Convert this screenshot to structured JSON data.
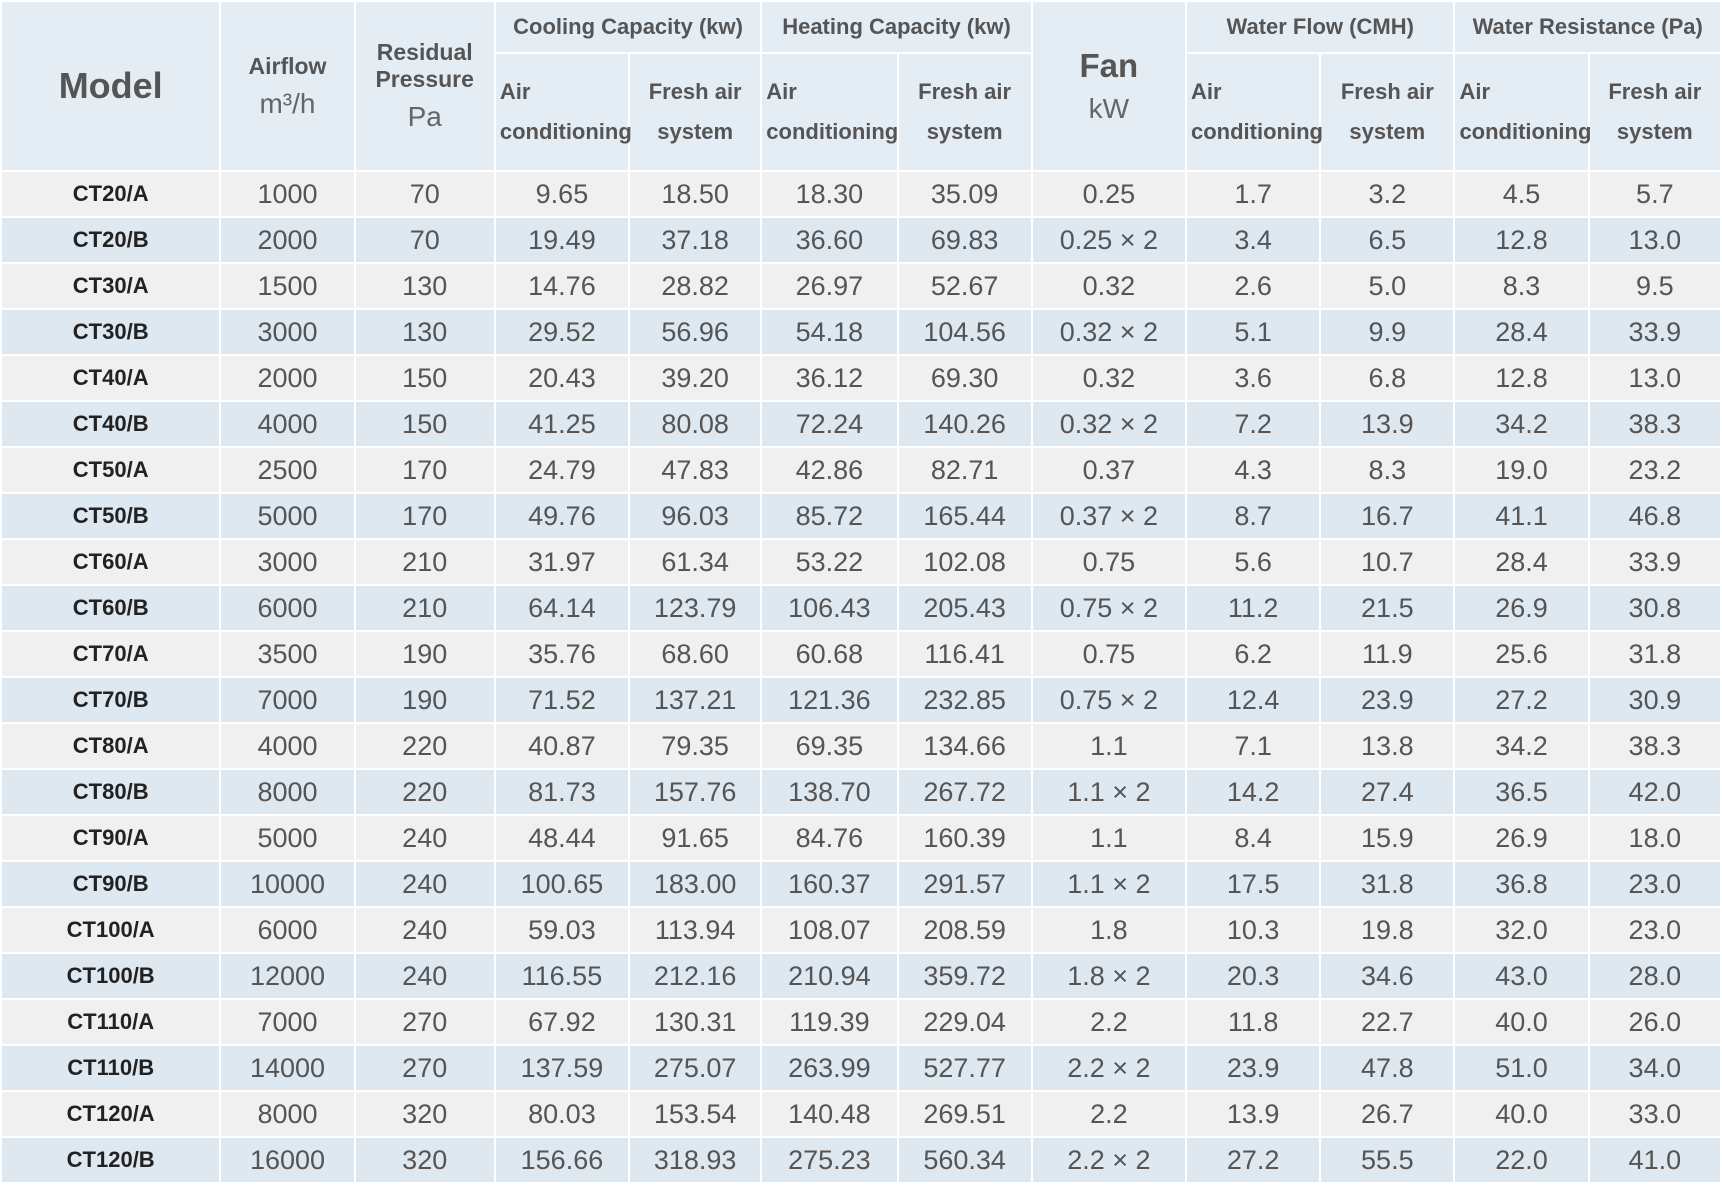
{
  "header": {
    "model": "Model",
    "airflow": "Airflow",
    "airflow_unit": "m³/h",
    "residual": "Residual Pressure",
    "residual_unit": "Pa",
    "fan": "Fan",
    "fan_unit": "kW",
    "groups": [
      {
        "title": "Cooling Capacity (kw)",
        "sub": [
          "Air conditioning",
          "Fresh air system"
        ]
      },
      {
        "title": "Heating Capacity (kw)",
        "sub": [
          "Air conditioning",
          "Fresh air system"
        ]
      },
      {
        "title": "Water Flow (CMH)",
        "sub": [
          "Air conditioning",
          "Fresh air system"
        ]
      },
      {
        "title": "Water Resistance (Pa)",
        "sub": [
          "Air conditioning",
          "Fresh air system"
        ]
      }
    ]
  },
  "rows": [
    [
      "CT20/A",
      "1000",
      "70",
      "9.65",
      "18.50",
      "18.30",
      "35.09",
      "0.25",
      "1.7",
      "3.2",
      "4.5",
      "5.7"
    ],
    [
      "CT20/B",
      "2000",
      "70",
      "19.49",
      "37.18",
      "36.60",
      "69.83",
      "0.25 × 2",
      "3.4",
      "6.5",
      "12.8",
      "13.0"
    ],
    [
      "CT30/A",
      "1500",
      "130",
      "14.76",
      "28.82",
      "26.97",
      "52.67",
      "0.32",
      "2.6",
      "5.0",
      "8.3",
      "9.5"
    ],
    [
      "CT30/B",
      "3000",
      "130",
      "29.52",
      "56.96",
      "54.18",
      "104.56",
      "0.32 × 2",
      "5.1",
      "9.9",
      "28.4",
      "33.9"
    ],
    [
      "CT40/A",
      "2000",
      "150",
      "20.43",
      "39.20",
      "36.12",
      "69.30",
      "0.32",
      "3.6",
      "6.8",
      "12.8",
      "13.0"
    ],
    [
      "CT40/B",
      "4000",
      "150",
      "41.25",
      "80.08",
      "72.24",
      "140.26",
      "0.32 × 2",
      "7.2",
      "13.9",
      "34.2",
      "38.3"
    ],
    [
      "CT50/A",
      "2500",
      "170",
      "24.79",
      "47.83",
      "42.86",
      "82.71",
      "0.37",
      "4.3",
      "8.3",
      "19.0",
      "23.2"
    ],
    [
      "CT50/B",
      "5000",
      "170",
      "49.76",
      "96.03",
      "85.72",
      "165.44",
      "0.37 × 2",
      "8.7",
      "16.7",
      "41.1",
      "46.8"
    ],
    [
      "CT60/A",
      "3000",
      "210",
      "31.97",
      "61.34",
      "53.22",
      "102.08",
      "0.75",
      "5.6",
      "10.7",
      "28.4",
      "33.9"
    ],
    [
      "CT60/B",
      "6000",
      "210",
      "64.14",
      "123.79",
      "106.43",
      "205.43",
      "0.75 × 2",
      "11.2",
      "21.5",
      "26.9",
      "30.8"
    ],
    [
      "CT70/A",
      "3500",
      "190",
      "35.76",
      "68.60",
      "60.68",
      "116.41",
      "0.75",
      "6.2",
      "11.9",
      "25.6",
      "31.8"
    ],
    [
      "CT70/B",
      "7000",
      "190",
      "71.52",
      "137.21",
      "121.36",
      "232.85",
      "0.75 × 2",
      "12.4",
      "23.9",
      "27.2",
      "30.9"
    ],
    [
      "CT80/A",
      "4000",
      "220",
      "40.87",
      "79.35",
      "69.35",
      "134.66",
      "1.1",
      "7.1",
      "13.8",
      "34.2",
      "38.3"
    ],
    [
      "CT80/B",
      "8000",
      "220",
      "81.73",
      "157.76",
      "138.70",
      "267.72",
      "1.1 × 2",
      "14.2",
      "27.4",
      "36.5",
      "42.0"
    ],
    [
      "CT90/A",
      "5000",
      "240",
      "48.44",
      "91.65",
      "84.76",
      "160.39",
      "1.1",
      "8.4",
      "15.9",
      "26.9",
      "18.0"
    ],
    [
      "CT90/B",
      "10000",
      "240",
      "100.65",
      "183.00",
      "160.37",
      "291.57",
      "1.1 × 2",
      "17.5",
      "31.8",
      "36.8",
      "23.0"
    ],
    [
      "CT100/A",
      "6000",
      "240",
      "59.03",
      "113.94",
      "108.07",
      "208.59",
      "1.8",
      "10.3",
      "19.8",
      "32.0",
      "23.0"
    ],
    [
      "CT100/B",
      "12000",
      "240",
      "116.55",
      "212.16",
      "210.94",
      "359.72",
      "1.8 × 2",
      "20.3",
      "34.6",
      "43.0",
      "28.0"
    ],
    [
      "CT110/A",
      "7000",
      "270",
      "67.92",
      "130.31",
      "119.39",
      "229.04",
      "2.2",
      "11.8",
      "22.7",
      "40.0",
      "26.0"
    ],
    [
      "CT110/B",
      "14000",
      "270",
      "137.59",
      "275.07",
      "263.99",
      "527.77",
      "2.2 × 2",
      "23.9",
      "47.8",
      "51.0",
      "34.0"
    ],
    [
      "CT120/A",
      "8000",
      "320",
      "80.03",
      "153.54",
      "140.48",
      "269.51",
      "2.2",
      "13.9",
      "26.7",
      "40.0",
      "33.0"
    ],
    [
      "CT120/B",
      "16000",
      "320",
      "156.66",
      "318.93",
      "275.23",
      "560.34",
      "2.2 × 2",
      "27.2",
      "55.5",
      "22.0",
      "41.0"
    ]
  ]
}
